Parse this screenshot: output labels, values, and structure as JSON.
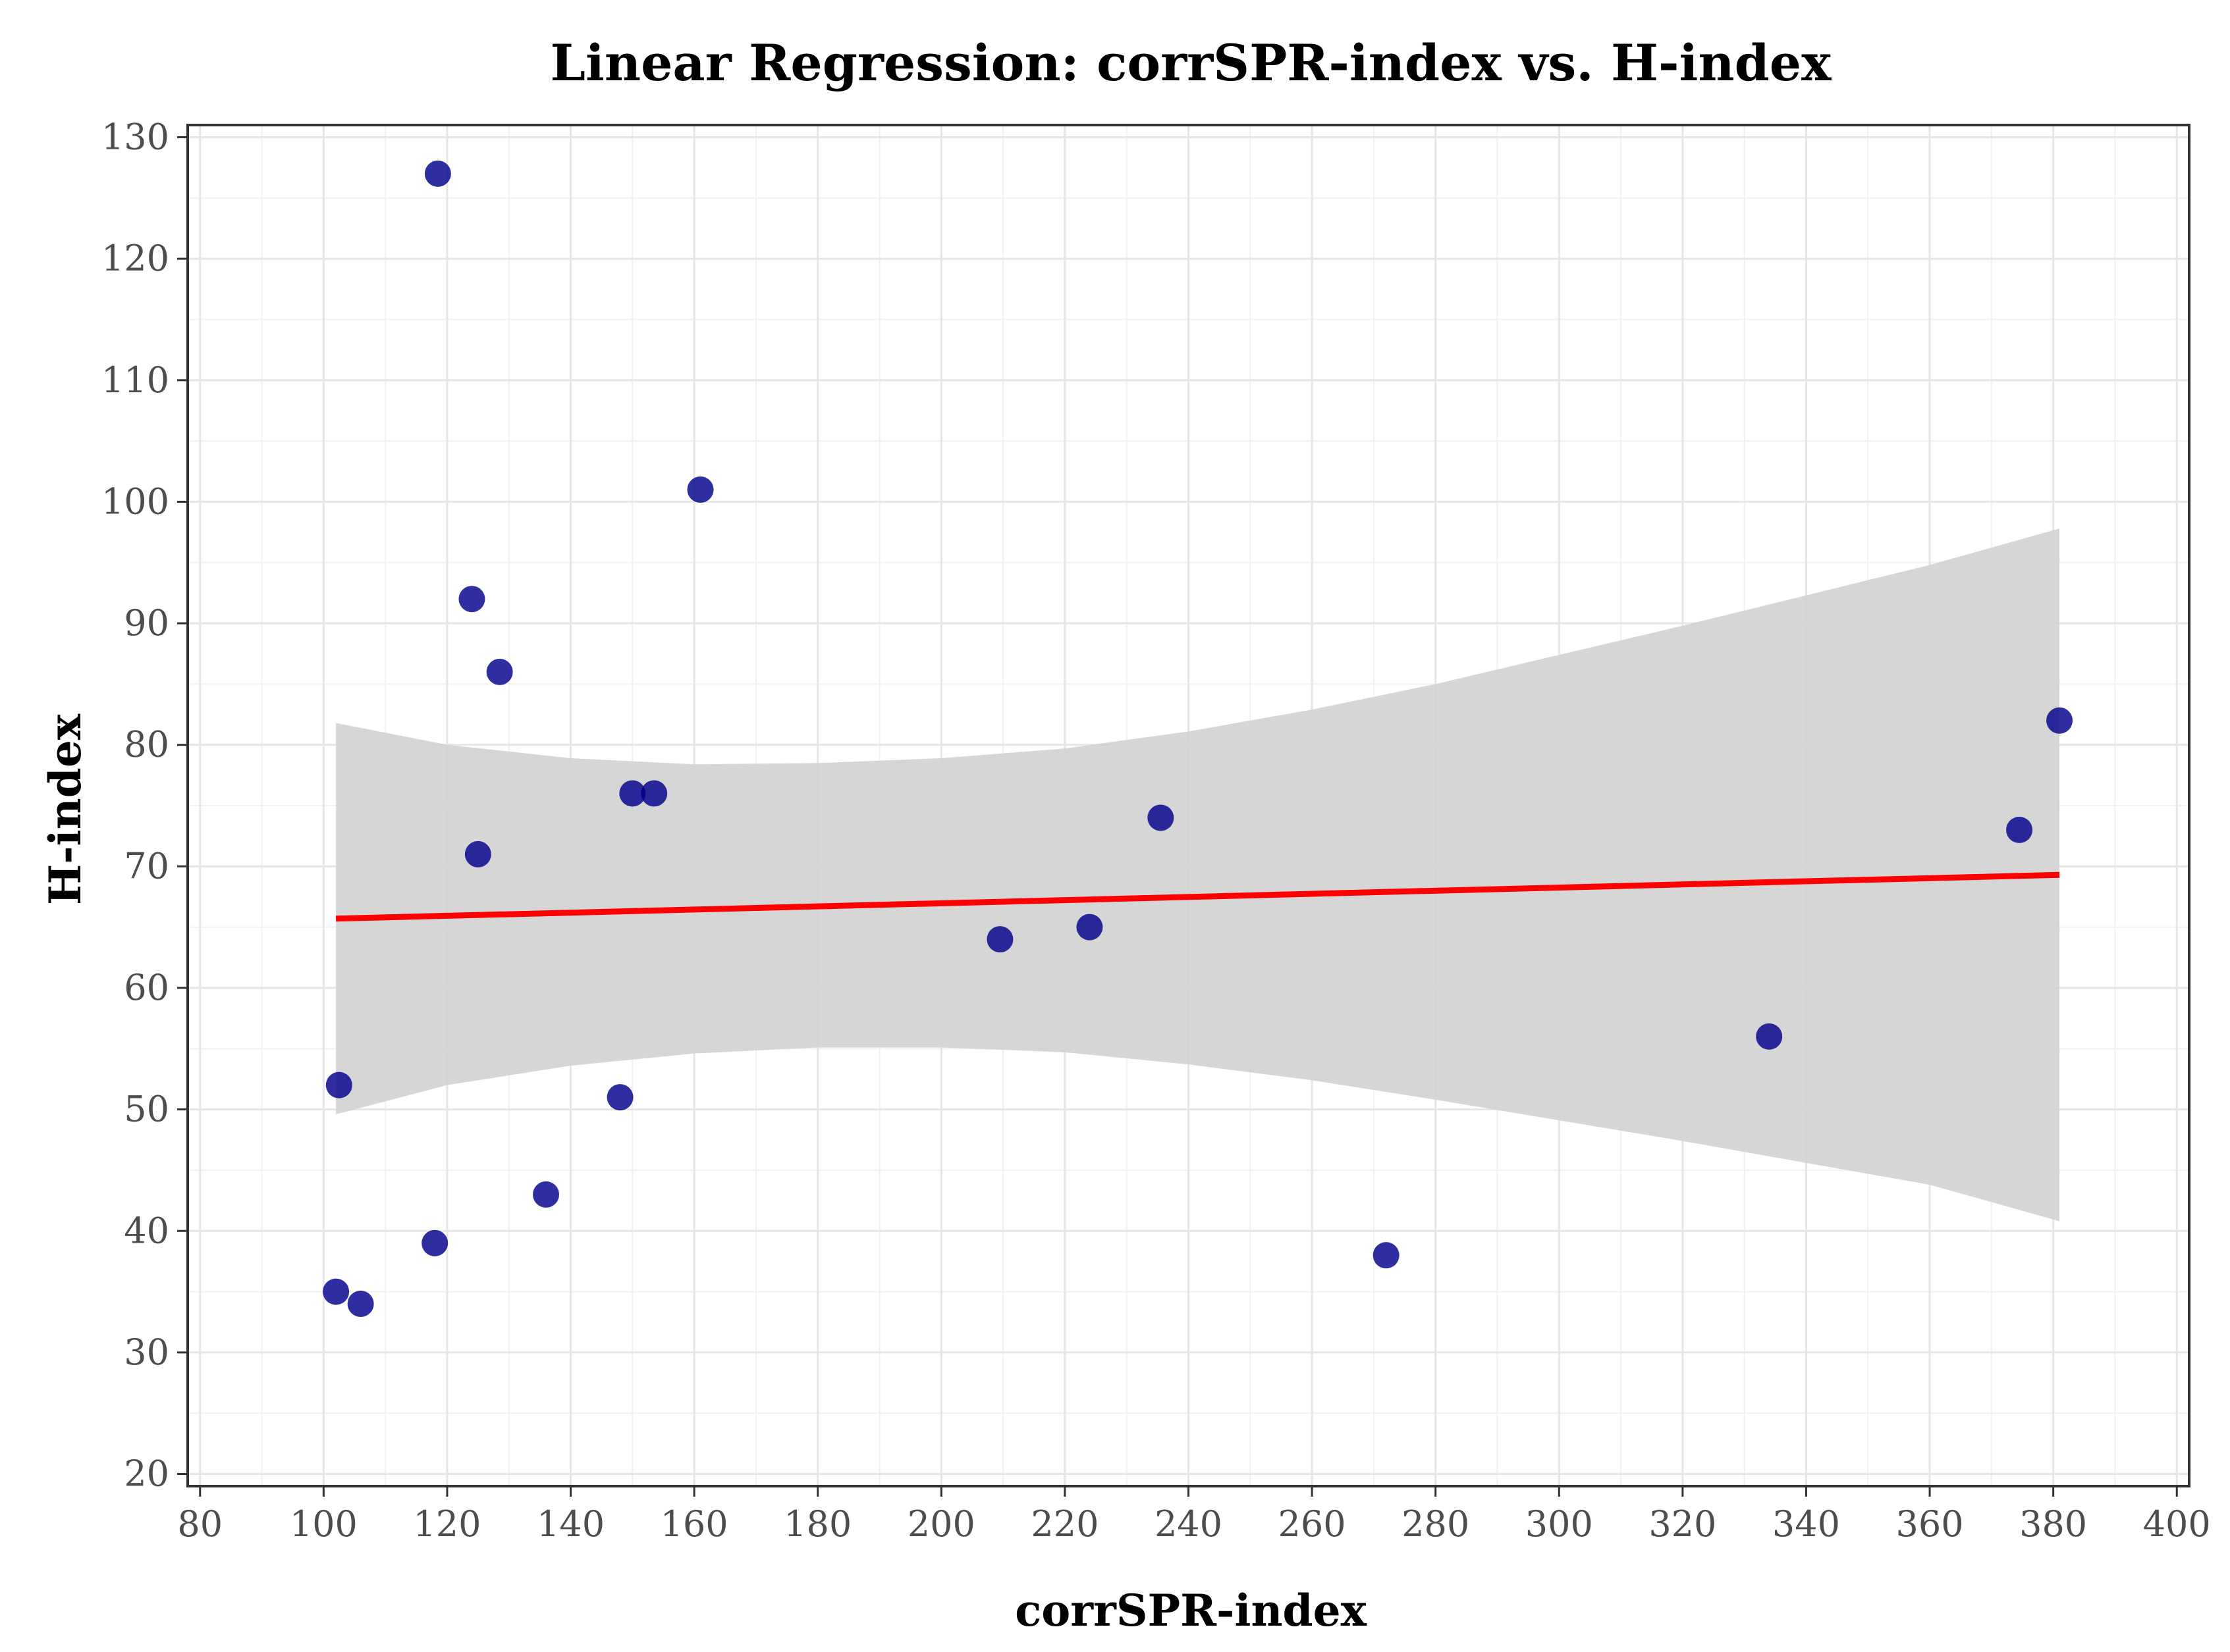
{
  "chart_data": {
    "type": "scatter",
    "title": "Linear Regression: corrSPR-index vs. H-index",
    "xlabel": "corrSPR-index",
    "ylabel": "H-index",
    "xlim": [
      78,
      402
    ],
    "ylim": [
      19,
      131
    ],
    "x_ticks": [
      80,
      100,
      120,
      140,
      160,
      180,
      200,
      220,
      240,
      260,
      280,
      300,
      320,
      340,
      360,
      380,
      400
    ],
    "y_ticks": [
      20,
      30,
      40,
      50,
      60,
      70,
      80,
      90,
      100,
      110,
      120,
      130
    ],
    "grid": true,
    "colors": {
      "points": "#00008b",
      "regression_line": "#ff0000",
      "confidence_band": "#d3d3d3"
    },
    "points": [
      {
        "x": 118.5,
        "y": 127
      },
      {
        "x": 161,
        "y": 101
      },
      {
        "x": 124,
        "y": 92
      },
      {
        "x": 128.5,
        "y": 86
      },
      {
        "x": 150,
        "y": 76
      },
      {
        "x": 153.5,
        "y": 76
      },
      {
        "x": 125,
        "y": 71
      },
      {
        "x": 235.5,
        "y": 74
      },
      {
        "x": 209.5,
        "y": 64
      },
      {
        "x": 224,
        "y": 65
      },
      {
        "x": 381,
        "y": 82
      },
      {
        "x": 374.5,
        "y": 73
      },
      {
        "x": 334,
        "y": 56
      },
      {
        "x": 102.5,
        "y": 52
      },
      {
        "x": 148,
        "y": 51
      },
      {
        "x": 136,
        "y": 43
      },
      {
        "x": 118,
        "y": 39
      },
      {
        "x": 102,
        "y": 35
      },
      {
        "x": 106,
        "y": 34
      },
      {
        "x": 272,
        "y": 38
      }
    ],
    "regression_line": {
      "x": [
        102,
        381
      ],
      "y": [
        65.7,
        69.3
      ]
    },
    "confidence_band": {
      "x": [
        102,
        120,
        140,
        160,
        180,
        200,
        220,
        240,
        260,
        280,
        300,
        320,
        340,
        360,
        381
      ],
      "upper": [
        81.8,
        80.0,
        78.9,
        78.4,
        78.5,
        78.9,
        79.7,
        81.1,
        82.9,
        85.0,
        87.4,
        89.8,
        92.3,
        94.8,
        97.8
      ],
      "lower": [
        49.6,
        52.0,
        53.6,
        54.6,
        55.1,
        55.1,
        54.7,
        53.7,
        52.4,
        50.8,
        49.1,
        47.4,
        45.6,
        43.8,
        40.8
      ]
    }
  }
}
